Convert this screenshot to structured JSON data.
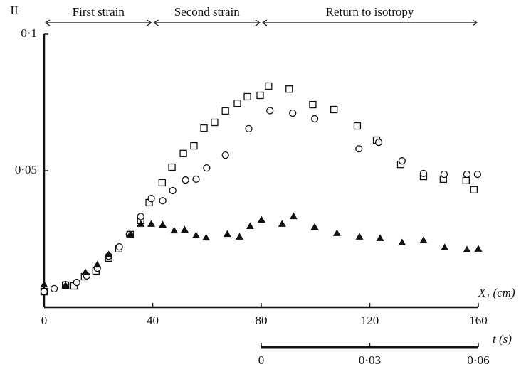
{
  "chart_data": {
    "type": "scatter",
    "ylabel": "II",
    "xlabel": "X₁ (cm)",
    "xlim": [
      0,
      160
    ],
    "xticks": [
      0,
      40,
      80,
      120,
      160
    ],
    "ylim": [
      0,
      {
        "value": 0.1,
        "label": "0·1"
      }
    ],
    "yticks": [
      {
        "value": 0.05,
        "label": "0·05"
      },
      {
        "value": 0.1,
        "label": "0·1"
      }
    ],
    "x2label": "t (s)",
    "x2lim": [
      0,
      0.06
    ],
    "x2_at": [
      80,
      160
    ],
    "x2ticks": [
      0,
      {
        "value": 0.03,
        "label": "0·03"
      },
      {
        "value": 0.06,
        "label": "0·06"
      }
    ],
    "phases": [
      {
        "label": "First strain",
        "range": [
          0,
          40
        ]
      },
      {
        "label": "Second strain",
        "range": [
          40,
          80
        ]
      },
      {
        "label": "Return to isotropy",
        "range": [
          80,
          160
        ]
      }
    ],
    "series": [
      {
        "marker": "square",
        "color": "#111111",
        "x": [
          0,
          7.9,
          11,
          14.9,
          19.1,
          23.8,
          27.5,
          31.7,
          35.6,
          38.7,
          43.5,
          47.1,
          51.3,
          55.2,
          58.9,
          62.8,
          66.8,
          71.2,
          74.9,
          79.6,
          82.7,
          90.3,
          99,
          106.8,
          115.4,
          122.5,
          131.4,
          139.8,
          147.1,
          155.5,
          158.4
        ],
        "values": [
          0.0057,
          0.0081,
          0.0078,
          0.0112,
          0.0133,
          0.018,
          0.0214,
          0.0266,
          0.0318,
          0.0383,
          0.0456,
          0.0513,
          0.0563,
          0.0591,
          0.0656,
          0.0677,
          0.0719,
          0.0747,
          0.0771,
          0.0776,
          0.081,
          0.0799,
          0.0742,
          0.0724,
          0.0664,
          0.0612,
          0.0523,
          0.0479,
          0.0469,
          0.0464,
          0.043
        ]
      },
      {
        "marker": "circle",
        "color": "#111111",
        "x": [
          0,
          3.7,
          7.9,
          12,
          15.7,
          19.6,
          23.8,
          27.7,
          31.4,
          35.6,
          39.5,
          43.7,
          47.4,
          52.1,
          56,
          59.9,
          66.8,
          75.4,
          83.2,
          91.6,
          99.7,
          116,
          123.3,
          131.9,
          139.8,
          147.4,
          155.8,
          159.7
        ],
        "values": [
          0.0057,
          0.0068,
          0.0083,
          0.0091,
          0.0115,
          0.0143,
          0.0187,
          0.0221,
          0.0266,
          0.0332,
          0.0398,
          0.039,
          0.0427,
          0.0466,
          0.0469,
          0.051,
          0.0557,
          0.0654,
          0.072,
          0.0711,
          0.069,
          0.058,
          0.0604,
          0.0536,
          0.049,
          0.0487,
          0.0487,
          0.0487
        ]
      },
      {
        "marker": "triangle",
        "color": "#111111",
        "x": [
          0,
          7.9,
          15.2,
          19.6,
          23.8,
          31.7,
          35.6,
          39.5,
          43.7,
          47.9,
          51.8,
          56,
          59.7,
          67.5,
          72,
          75.9,
          80.1,
          87.7,
          91.9,
          99.7,
          107.9,
          116.2,
          123.8,
          131.9,
          139.8,
          147.6,
          155.8,
          160
        ],
        "values": [
          0.0083,
          0.008,
          0.0128,
          0.0156,
          0.0193,
          0.0266,
          0.0305,
          0.0305,
          0.0302,
          0.0281,
          0.0284,
          0.0263,
          0.0255,
          0.0268,
          0.0258,
          0.0297,
          0.032,
          0.0305,
          0.0333,
          0.0294,
          0.0271,
          0.0258,
          0.0253,
          0.0237,
          0.0245,
          0.0219,
          0.0211,
          0.0214
        ]
      }
    ]
  }
}
